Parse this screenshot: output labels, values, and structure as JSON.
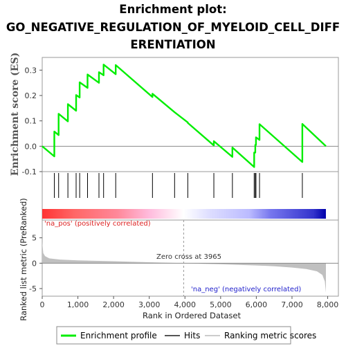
{
  "chart_data": {
    "type": "line",
    "title_lines": [
      "Enrichment plot:",
      "GO_NEGATIVE_REGULATION_OF_MYELOID_CELL_DIFF",
      "ERENTIATION"
    ],
    "xlabel": "Rank in Ordered Dataset",
    "xlim": [
      0,
      8300
    ],
    "x_ticks": [
      0,
      1000,
      2000,
      3000,
      4000,
      5000,
      6000,
      7000,
      8000
    ],
    "x_tick_labels": [
      "0",
      "1,000",
      "2,000",
      "3,000",
      "4,000",
      "5,000",
      "6,000",
      "7,000",
      "8,000"
    ],
    "es_panel": {
      "ylabel": "Enrichment score (ES)",
      "ylim": [
        -0.1,
        0.35
      ],
      "y_ticks": [
        -0.1,
        0.0,
        0.1,
        0.2,
        0.3
      ],
      "y_tick_labels": [
        "-0.1",
        "0.0",
        "0.1",
        "0.2",
        "0.3"
      ],
      "series": [
        {
          "name": "Enrichment profile",
          "color": "#00ee00",
          "points": [
            [
              0,
              0.0
            ],
            [
              340,
              -0.04
            ],
            [
              340,
              0.058
            ],
            [
              460,
              0.044
            ],
            [
              460,
              0.128
            ],
            [
              720,
              0.098
            ],
            [
              720,
              0.166
            ],
            [
              950,
              0.14
            ],
            [
              950,
              0.202
            ],
            [
              1050,
              0.192
            ],
            [
              1050,
              0.252
            ],
            [
              1270,
              0.23
            ],
            [
              1270,
              0.283
            ],
            [
              1590,
              0.25
            ],
            [
              1590,
              0.292
            ],
            [
              1720,
              0.28
            ],
            [
              1720,
              0.322
            ],
            [
              2060,
              0.284
            ],
            [
              2060,
              0.32
            ],
            [
              3090,
              0.194
            ],
            [
              3090,
              0.207
            ],
            [
              3710,
              0.134
            ],
            [
              4080,
              0.094
            ],
            [
              4080,
              0.092
            ],
            [
              4810,
              0.003
            ],
            [
              4810,
              0.02
            ],
            [
              5330,
              -0.042
            ],
            [
              5330,
              -0.005
            ],
            [
              5940,
              -0.082
            ],
            [
              5940,
              -0.025
            ],
            [
              5970,
              -0.025
            ],
            [
              5970,
              0.005
            ],
            [
              5990,
              0.005
            ],
            [
              5990,
              0.035
            ],
            [
              6090,
              0.025
            ],
            [
              6090,
              0.087
            ],
            [
              7290,
              -0.062
            ],
            [
              7290,
              0.088
            ],
            [
              7950,
              0.0
            ]
          ]
        }
      ]
    },
    "hits_panel": {
      "hits_label": "Hits",
      "hit_color": "#000000",
      "hit_ranks": [
        340,
        460,
        720,
        950,
        1050,
        1270,
        1590,
        1720,
        2060,
        3090,
        3710,
        4080,
        4810,
        5330,
        5940,
        5970,
        5990,
        6090,
        7290
      ],
      "color_bar": {
        "stops": [
          {
            "rank": 0,
            "color": "#ff3333"
          },
          {
            "rank": 900,
            "color": "#ff6666"
          },
          {
            "rank": 2100,
            "color": "#ff8899"
          },
          {
            "rank": 3000,
            "color": "#ffbbdd"
          },
          {
            "rank": 3965,
            "color": "#ffffff"
          },
          {
            "rank": 4700,
            "color": "#ddddff"
          },
          {
            "rank": 5800,
            "color": "#bbbbff"
          },
          {
            "rank": 6400,
            "color": "#7777ee"
          },
          {
            "rank": 7600,
            "color": "#3333cc"
          },
          {
            "rank": 7950,
            "color": "#0000aa"
          }
        ]
      }
    },
    "metric_panel": {
      "ylabel": "Ranked list metric (PreRanked)",
      "ylim": [
        -6.5,
        8.5
      ],
      "y_ticks": [
        -5,
        0,
        5
      ],
      "y_tick_labels": [
        "-5",
        "0",
        "5"
      ],
      "series_name": "Ranking metric scores",
      "fill_color": "#c0c0c0",
      "zero_cross_label": "Zero cross at 3965",
      "zero_cross_rank": 3965,
      "pos_label": "'na_pos' (positively correlated)",
      "pos_color": "#dd2222",
      "neg_label": "'na_neg' (negatively correlated)",
      "neg_color": "#2222cc",
      "profile": [
        [
          0,
          4.2
        ],
        [
          30,
          2.0
        ],
        [
          80,
          1.4
        ],
        [
          200,
          0.95
        ],
        [
          500,
          0.72
        ],
        [
          1000,
          0.55
        ],
        [
          2000,
          0.38
        ],
        [
          3000,
          0.18
        ],
        [
          3965,
          0.0
        ],
        [
          4500,
          -0.12
        ],
        [
          5000,
          -0.22
        ],
        [
          5500,
          -0.32
        ],
        [
          6000,
          -0.45
        ],
        [
          6500,
          -0.6
        ],
        [
          7000,
          -0.85
        ],
        [
          7400,
          -1.15
        ],
        [
          7700,
          -1.6
        ],
        [
          7850,
          -2.3
        ],
        [
          7920,
          -3.6
        ],
        [
          7950,
          -5.8
        ]
      ]
    },
    "legend": [
      {
        "label": "Enrichment profile",
        "color": "#00ee00",
        "kind": "line-thick"
      },
      {
        "label": "Hits",
        "color": "#555555",
        "kind": "line"
      },
      {
        "label": "Ranking metric scores",
        "color": "#cccccc",
        "kind": "line"
      }
    ]
  }
}
